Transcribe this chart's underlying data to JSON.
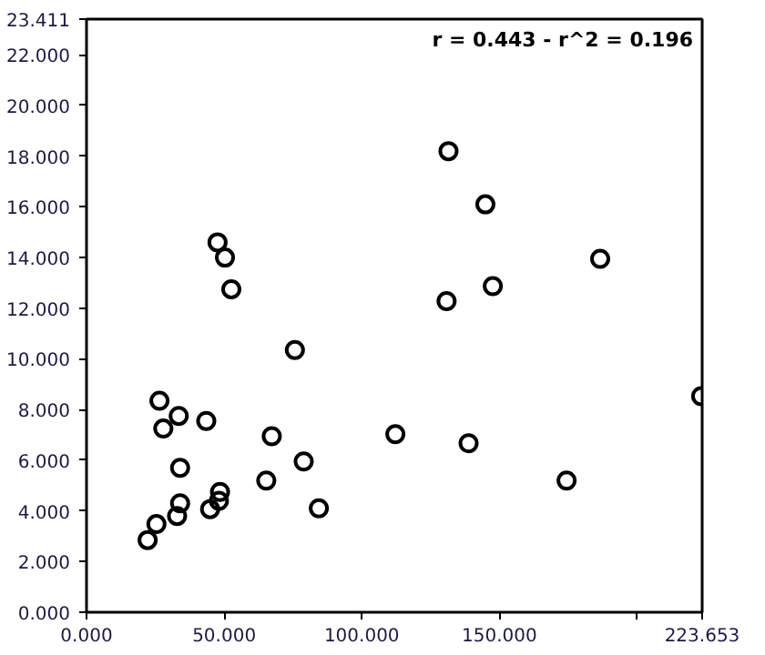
{
  "chart_data": {
    "type": "scatter",
    "x": [
      22.2,
      25.4,
      32.9,
      34.0,
      34.0,
      27.9,
      26.5,
      33.5,
      43.5,
      44.9,
      48.1,
      48.5,
      65.3,
      67.3,
      75.7,
      78.9,
      84.4,
      47.6,
      50.3,
      52.6,
      131.5,
      144.9,
      186.6,
      147.6,
      130.8,
      112.2,
      138.8,
      174.4,
      223.3
    ],
    "series": [
      {
        "color": "#000000",
        "values": [
          2.85,
          3.48,
          3.8,
          4.3,
          5.7,
          7.25,
          8.35,
          7.75,
          7.55,
          4.07,
          4.4,
          4.75,
          5.2,
          6.95,
          10.35,
          5.95,
          4.1,
          14.6,
          14.0,
          12.75,
          18.2,
          16.1,
          13.95,
          12.87,
          12.28,
          7.03,
          6.67,
          5.2,
          8.53
        ]
      }
    ],
    "xlim": [
      0,
      223.653
    ],
    "ylim": [
      0,
      23.411
    ],
    "xticks": [
      {
        "value": 0,
        "label": "0.000"
      },
      {
        "value": 50,
        "label": "50.000"
      },
      {
        "value": 100,
        "label": "100.000"
      },
      {
        "value": 150,
        "label": "150.000"
      },
      {
        "value": 200,
        "label": null
      },
      {
        "value": 223.653,
        "label": "223.653"
      }
    ],
    "yticks": [
      {
        "value": 0,
        "label": "0.000"
      },
      {
        "value": 2,
        "label": "2.000"
      },
      {
        "value": 4,
        "label": "4.000"
      },
      {
        "value": 6,
        "label": "6.000"
      },
      {
        "value": 8,
        "label": "8.000"
      },
      {
        "value": 10,
        "label": "10.000"
      },
      {
        "value": 12,
        "label": "12.000"
      },
      {
        "value": 14,
        "label": "14.000"
      },
      {
        "value": 16,
        "label": "16.000"
      },
      {
        "value": 18,
        "label": "18.000"
      },
      {
        "value": 20,
        "label": "20.000"
      },
      {
        "value": 22,
        "label": "22.000"
      },
      {
        "value": 23.411,
        "label": "23.411"
      }
    ],
    "annotations": [
      "r = 0.443 - r^2 = 0.196"
    ],
    "marker": "circle",
    "grid": false
  }
}
